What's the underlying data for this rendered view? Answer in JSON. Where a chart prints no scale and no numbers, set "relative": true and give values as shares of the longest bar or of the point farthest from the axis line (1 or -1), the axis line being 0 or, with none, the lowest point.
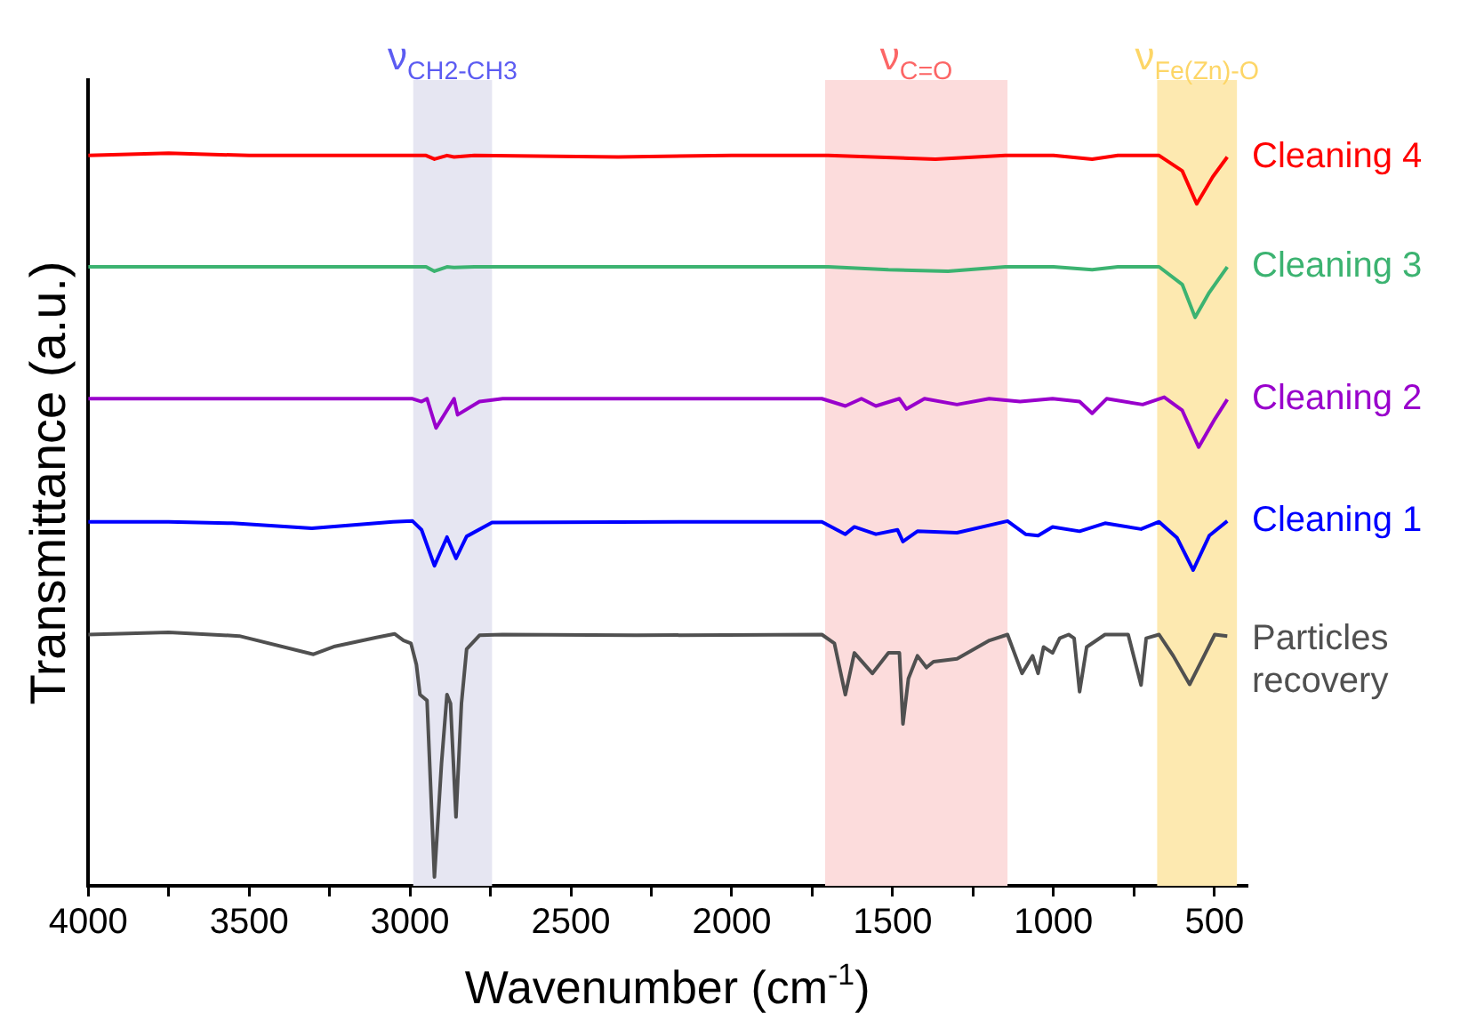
{
  "chart_data": {
    "type": "line",
    "relative": true,
    "xlabel": "Wavenumber (cm$^{-1}$)",
    "ylabel": "Transmittance (a.u.)",
    "xlim": [
      4000,
      400
    ],
    "xticks": [
      4000,
      {
        "value": 3750,
        "label": null
      },
      3500,
      {
        "value": 3250,
        "label": null
      },
      3000,
      {
        "value": 2750,
        "label": null
      },
      2500,
      {
        "value": 2250,
        "label": null
      },
      2000,
      {
        "value": 1750,
        "label": null
      },
      1500,
      {
        "value": 1250,
        "label": null
      },
      1000,
      {
        "value": 750,
        "label": null
      },
      500
    ],
    "tick_labels": "x",
    "grid": false,
    "legend": false,
    "marker": "none",
    "line_style": "solid",
    "bands": [
      {
        "axis": "x",
        "from": 2990,
        "to": 2745,
        "label": "ν$_{CH2-CH3}$",
        "color": "#e6e6f2"
      },
      {
        "axis": "x",
        "from": 1710,
        "to": 1143,
        "label": "ν$_{C=O}$",
        "color": "#fcdcdc"
      },
      {
        "axis": "x",
        "from": 678,
        "to": 430,
        "label": "ν$_{Fe(Zn)-O}$",
        "color": "#fde9b0"
      }
    ],
    "series": [
      {
        "name": "Cleaning 4",
        "color": "#ff0000",
        "x": [
          4000,
          3750,
          3500,
          3000,
          2950,
          2924,
          2885,
          2863,
          2800,
          2353,
          2000,
          1700,
          1367,
          1150,
          1000,
          880,
          800,
          672,
          600,
          555,
          505,
          460
        ],
        "values": [
          0.997,
          1.0,
          0.997,
          0.997,
          0.997,
          0.992,
          0.997,
          0.995,
          0.997,
          0.995,
          0.997,
          0.997,
          0.992,
          0.997,
          0.997,
          0.992,
          0.997,
          0.997,
          0.976,
          0.931,
          0.968,
          0.995
        ]
      },
      {
        "name": "Cleaning 3",
        "color": "#3cb371",
        "x": [
          4000,
          3500,
          3000,
          2950,
          2924,
          2885,
          2863,
          2800,
          2000,
          1700,
          1513,
          1328,
          1150,
          1000,
          880,
          800,
          672,
          600,
          560,
          516,
          460
        ],
        "values": [
          0.845,
          0.845,
          0.845,
          0.845,
          0.839,
          0.845,
          0.844,
          0.845,
          0.845,
          0.845,
          0.841,
          0.839,
          0.845,
          0.845,
          0.841,
          0.845,
          0.845,
          0.821,
          0.776,
          0.81,
          0.845
        ]
      },
      {
        "name": "Cleaning 2",
        "color": "#9900cc",
        "x": [
          4000,
          3500,
          3000,
          2992,
          2964,
          2947,
          2919,
          2863,
          2852,
          2784,
          2712,
          2000,
          1720,
          1647,
          1597,
          1552,
          1479,
          1457,
          1401,
          1300,
          1200,
          1104,
          1003,
          919,
          880,
          835,
          723,
          656,
          600,
          549,
          499,
          460
        ],
        "values": [
          0.665,
          0.665,
          0.665,
          0.665,
          0.661,
          0.665,
          0.625,
          0.665,
          0.643,
          0.661,
          0.665,
          0.665,
          0.665,
          0.655,
          0.665,
          0.655,
          0.665,
          0.651,
          0.665,
          0.657,
          0.665,
          0.661,
          0.665,
          0.661,
          0.645,
          0.665,
          0.657,
          0.667,
          0.649,
          0.599,
          0.637,
          0.664
        ]
      },
      {
        "name": "Cleaning 1",
        "color": "#0000ff",
        "x": [
          4000,
          3750,
          3552,
          3305,
          3053,
          2992,
          2964,
          2924,
          2885,
          2857,
          2824,
          2745,
          2000,
          1720,
          1647,
          1619,
          1552,
          1485,
          1468,
          1423,
          1300,
          1143,
          1087,
          1048,
          1003,
          919,
          840,
          728,
          672,
          616,
          566,
          516,
          460
        ],
        "values": [
          0.497,
          0.497,
          0.495,
          0.488,
          0.497,
          0.498,
          0.486,
          0.437,
          0.476,
          0.447,
          0.477,
          0.496,
          0.497,
          0.497,
          0.48,
          0.49,
          0.48,
          0.486,
          0.47,
          0.484,
          0.482,
          0.498,
          0.48,
          0.478,
          0.49,
          0.484,
          0.495,
          0.487,
          0.497,
          0.475,
          0.431,
          0.478,
          0.498
        ]
      },
      {
        "name": "Particles recovery",
        "color": "#505050",
        "x": [
          4000,
          3750,
          3530,
          3300,
          3233,
          3104,
          3048,
          3020,
          2997,
          2980,
          2969,
          2947,
          2924,
          2902,
          2885,
          2874,
          2857,
          2840,
          2824,
          2784,
          2712,
          2297,
          1720,
          1681,
          1647,
          1619,
          1563,
          1513,
          1479,
          1468,
          1451,
          1423,
          1395,
          1373,
          1300,
          1199,
          1143,
          1098,
          1065,
          1048,
          1031,
          1003,
          981,
          953,
          936,
          919,
          897,
          840,
          768,
          728,
          712,
          672,
          628,
          577,
          532,
          499,
          460
        ],
        "values": [
          0.343,
          0.346,
          0.341,
          0.316,
          0.327,
          0.339,
          0.344,
          0.335,
          0.331,
          0.302,
          0.261,
          0.253,
          0.012,
          0.167,
          0.261,
          0.249,
          0.094,
          0.249,
          0.323,
          0.342,
          0.343,
          0.342,
          0.343,
          0.331,
          0.261,
          0.318,
          0.29,
          0.318,
          0.318,
          0.221,
          0.283,
          0.314,
          0.298,
          0.306,
          0.31,
          0.335,
          0.343,
          0.29,
          0.314,
          0.29,
          0.326,
          0.318,
          0.338,
          0.343,
          0.338,
          0.265,
          0.326,
          0.343,
          0.343,
          0.274,
          0.338,
          0.343,
          0.314,
          0.275,
          0.314,
          0.343,
          0.341
        ]
      }
    ]
  }
}
